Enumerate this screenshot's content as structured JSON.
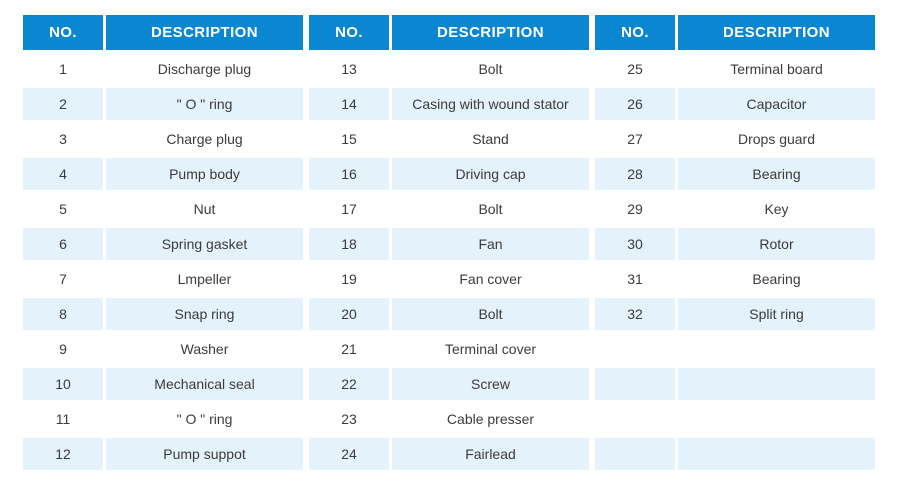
{
  "colors": {
    "header_bg": "#0b86d0",
    "header_text": "#ffffff",
    "row_even_bg": "#e4f2fc",
    "row_odd_bg": "#ffffff",
    "cell_text": "#3b3b3b"
  },
  "chart_data": {
    "type": "table",
    "column_groups": 3,
    "columns": [
      "NO.",
      "DESCRIPTION",
      "NO.",
      "DESCRIPTION",
      "NO.",
      "DESCRIPTION"
    ],
    "rows": [
      [
        "1",
        "Discharge plug",
        "13",
        "Bolt",
        "25",
        "Terminal board"
      ],
      [
        "2",
        "\" O \" ring",
        "14",
        "Casing with wound stator",
        "26",
        "Capacitor"
      ],
      [
        "3",
        "Charge plug",
        "15",
        "Stand",
        "27",
        "Drops guard"
      ],
      [
        "4",
        "Pump body",
        "16",
        "Driving cap",
        "28",
        "Bearing"
      ],
      [
        "5",
        "Nut",
        "17",
        "Bolt",
        "29",
        "Key"
      ],
      [
        "6",
        "Spring gasket",
        "18",
        "Fan",
        "30",
        "Rotor"
      ],
      [
        "7",
        "Lmpeller",
        "19",
        "Fan cover",
        "31",
        "Bearing"
      ],
      [
        "8",
        "Snap ring",
        "20",
        "Bolt",
        "32",
        "Split ring"
      ],
      [
        "9",
        "Washer",
        "21",
        "Terminal cover",
        "",
        ""
      ],
      [
        "10",
        "Mechanical seal",
        "22",
        "Screw",
        "",
        ""
      ],
      [
        "11",
        "\" O \" ring",
        "23",
        "Cable presser",
        "",
        ""
      ],
      [
        "12",
        "Pump suppot",
        "24",
        "Fairlead",
        "",
        ""
      ]
    ]
  }
}
